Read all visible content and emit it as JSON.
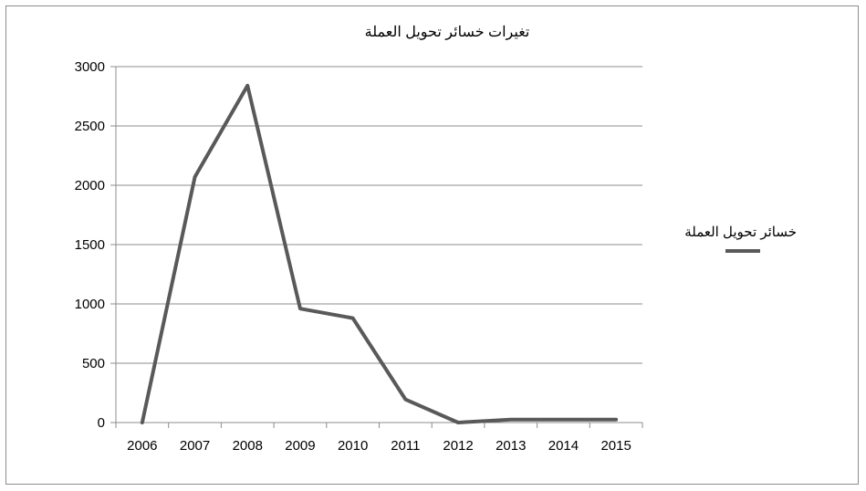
{
  "chart_data": {
    "type": "line",
    "title": "تغيرات خسائر تحويل العملة",
    "xlabel": "",
    "ylabel": "",
    "categories": [
      "2006",
      "2007",
      "2008",
      "2009",
      "2010",
      "2011",
      "2012",
      "2013",
      "2014",
      "2015"
    ],
    "ylim": [
      0,
      3000
    ],
    "yticks": [
      "0",
      "500",
      "1000",
      "1500",
      "2000",
      "2500",
      "3000"
    ],
    "grid": "horizontal",
    "legend_position": "right",
    "series": [
      {
        "name": "خسائر تحويل العملة",
        "color": "#595959",
        "values": [
          0,
          2070,
          2840,
          960,
          880,
          195,
          0,
          25,
          25,
          25
        ]
      }
    ]
  }
}
